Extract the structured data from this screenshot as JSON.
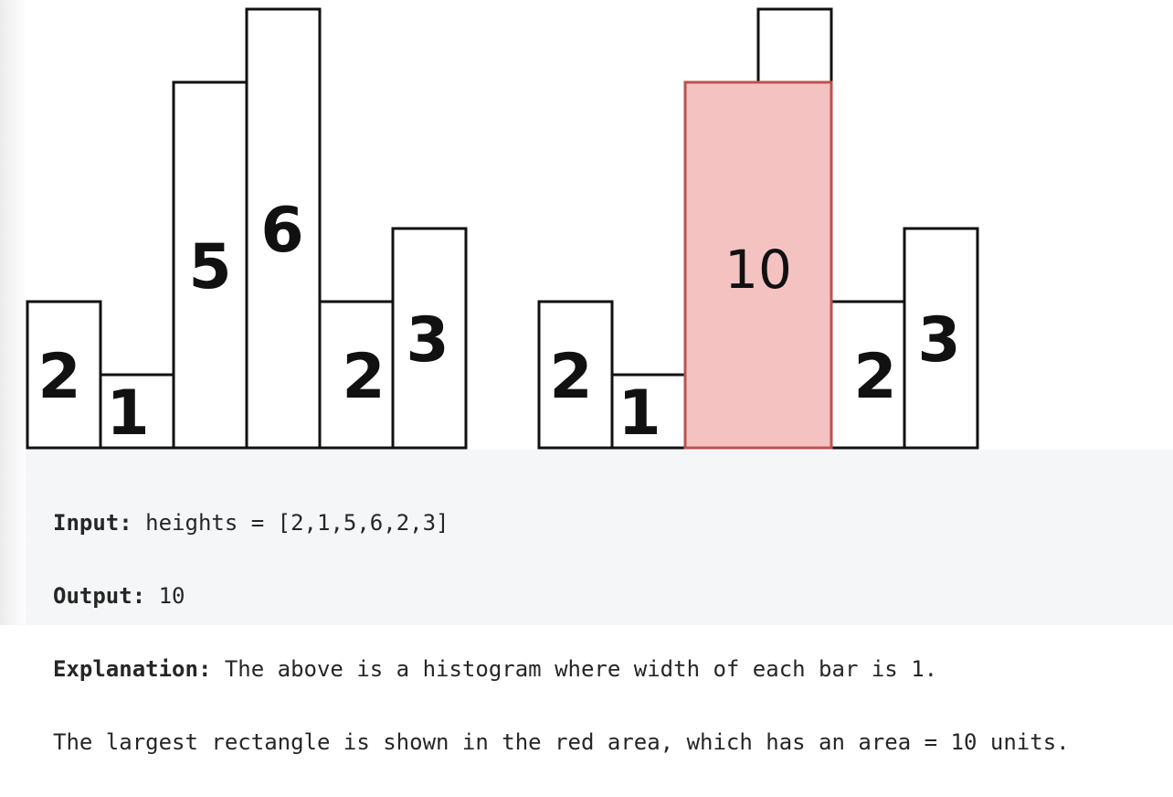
{
  "diagrams": {
    "left": {
      "bars": [
        {
          "height": 2,
          "label": "2"
        },
        {
          "height": 1,
          "label": "1"
        },
        {
          "height": 5,
          "label": "5"
        },
        {
          "height": 6,
          "label": "6"
        },
        {
          "height": 2,
          "label": "2"
        },
        {
          "height": 3,
          "label": "3"
        }
      ]
    },
    "right": {
      "bars": [
        {
          "height": 2,
          "label": "2"
        },
        {
          "height": 1,
          "label": "1"
        },
        {
          "height": 5,
          "label": ""
        },
        {
          "height": 6,
          "label": ""
        },
        {
          "height": 2,
          "label": "2"
        },
        {
          "height": 3,
          "label": "3"
        }
      ],
      "highlight": {
        "start_index": 2,
        "end_index": 3,
        "height": 5,
        "label": "10",
        "color": "#f5c2c2",
        "border_color": "#b85450"
      }
    }
  },
  "example": {
    "input_label": "Input:",
    "input_value": " heights = [2,1,5,6,2,3]",
    "output_label": "Output:",
    "output_value": " 10",
    "explanation_label": "Explanation:",
    "explanation_line1": " The above is a histogram where width of each bar is 1.",
    "explanation_line2": "The largest rectangle is shown in the red area, which has an area = 10 units."
  }
}
